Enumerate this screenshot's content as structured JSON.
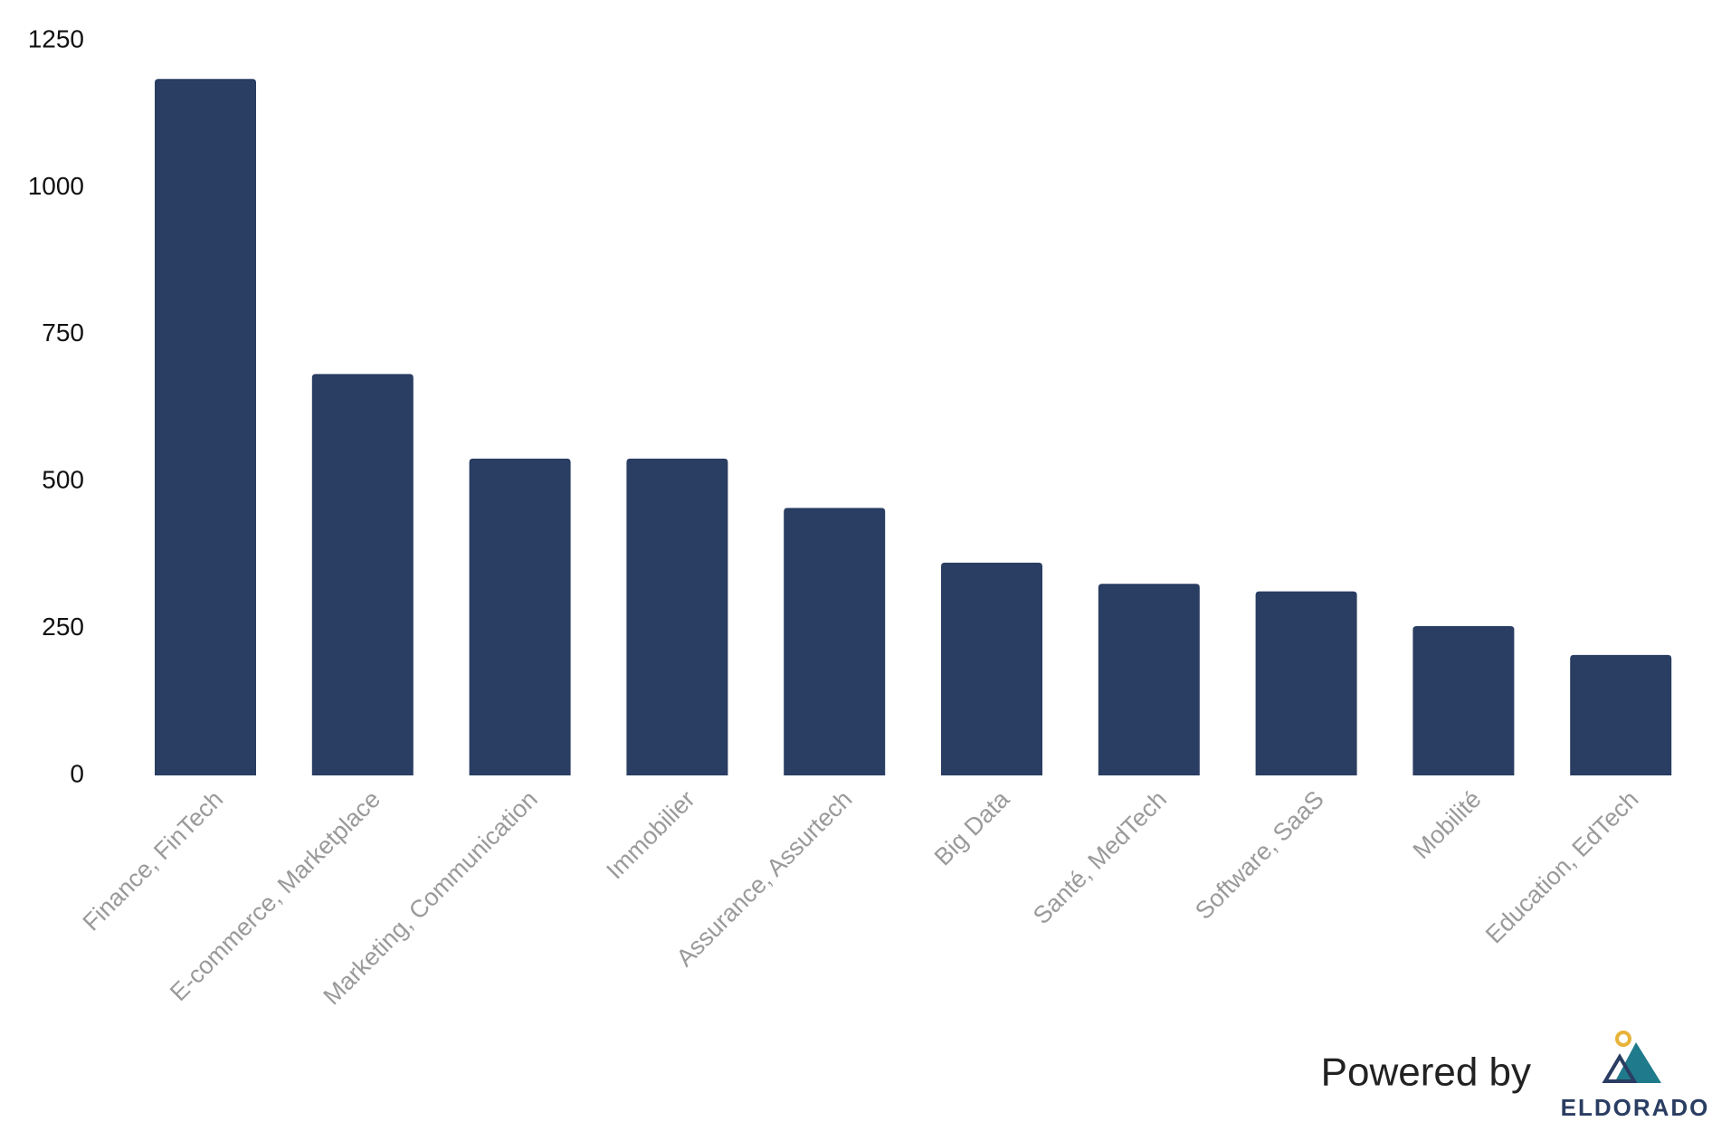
{
  "chart_data": {
    "type": "bar",
    "categories": [
      "Finance, FinTech",
      "E-commerce, Marketplace",
      "Marketing, Communication",
      "Immobilier",
      "Assurance, Assurtech",
      "Big Data",
      "Santé, MedTech",
      "Software, SaaS",
      "Mobilité",
      "Education, EdTech"
    ],
    "values": [
      1185,
      683,
      539,
      539,
      455,
      362,
      326,
      313,
      254,
      205
    ],
    "color": "#2a3d62",
    "ylim": [
      0,
      1250
    ],
    "yticks": [
      0,
      250,
      500,
      750,
      1000,
      1250
    ],
    "grid": false
  },
  "branding": {
    "powered_by": "Powered by",
    "logo_text": "ELDORADO"
  }
}
